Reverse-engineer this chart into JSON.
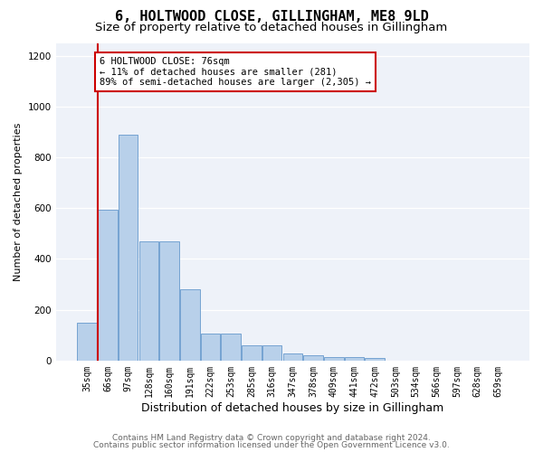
{
  "title": "6, HOLTWOOD CLOSE, GILLINGHAM, ME8 9LD",
  "subtitle": "Size of property relative to detached houses in Gillingham",
  "xlabel": "Distribution of detached houses by size in Gillingham",
  "ylabel": "Number of detached properties",
  "categories": [
    "35sqm",
    "66sqm",
    "97sqm",
    "128sqm",
    "160sqm",
    "191sqm",
    "222sqm",
    "253sqm",
    "285sqm",
    "316sqm",
    "347sqm",
    "378sqm",
    "409sqm",
    "441sqm",
    "472sqm",
    "503sqm",
    "534sqm",
    "566sqm",
    "597sqm",
    "628sqm",
    "659sqm"
  ],
  "values": [
    150,
    595,
    890,
    470,
    470,
    280,
    105,
    105,
    60,
    60,
    28,
    20,
    15,
    15,
    10,
    0,
    0,
    0,
    0,
    0,
    0
  ],
  "bar_color": "#b8d0ea",
  "bar_edge_color": "#6699cc",
  "vline_color": "#cc0000",
  "vline_x": 0.5,
  "annotation_title": "6 HOLTWOOD CLOSE: 76sqm",
  "annotation_line1": "← 11% of detached houses are smaller (281)",
  "annotation_line2": "89% of semi-detached houses are larger (2,305) →",
  "ylim": [
    0,
    1250
  ],
  "yticks": [
    0,
    200,
    400,
    600,
    800,
    1000,
    1200
  ],
  "footer1": "Contains HM Land Registry data © Crown copyright and database right 2024.",
  "footer2": "Contains public sector information licensed under the Open Government Licence v3.0.",
  "bg_color": "#eef2f9",
  "title_fontsize": 11,
  "subtitle_fontsize": 9.5,
  "ylabel_fontsize": 8,
  "xlabel_fontsize": 9,
  "tick_fontsize": 7,
  "annotation_fontsize": 7.5,
  "footer_fontsize": 6.5
}
